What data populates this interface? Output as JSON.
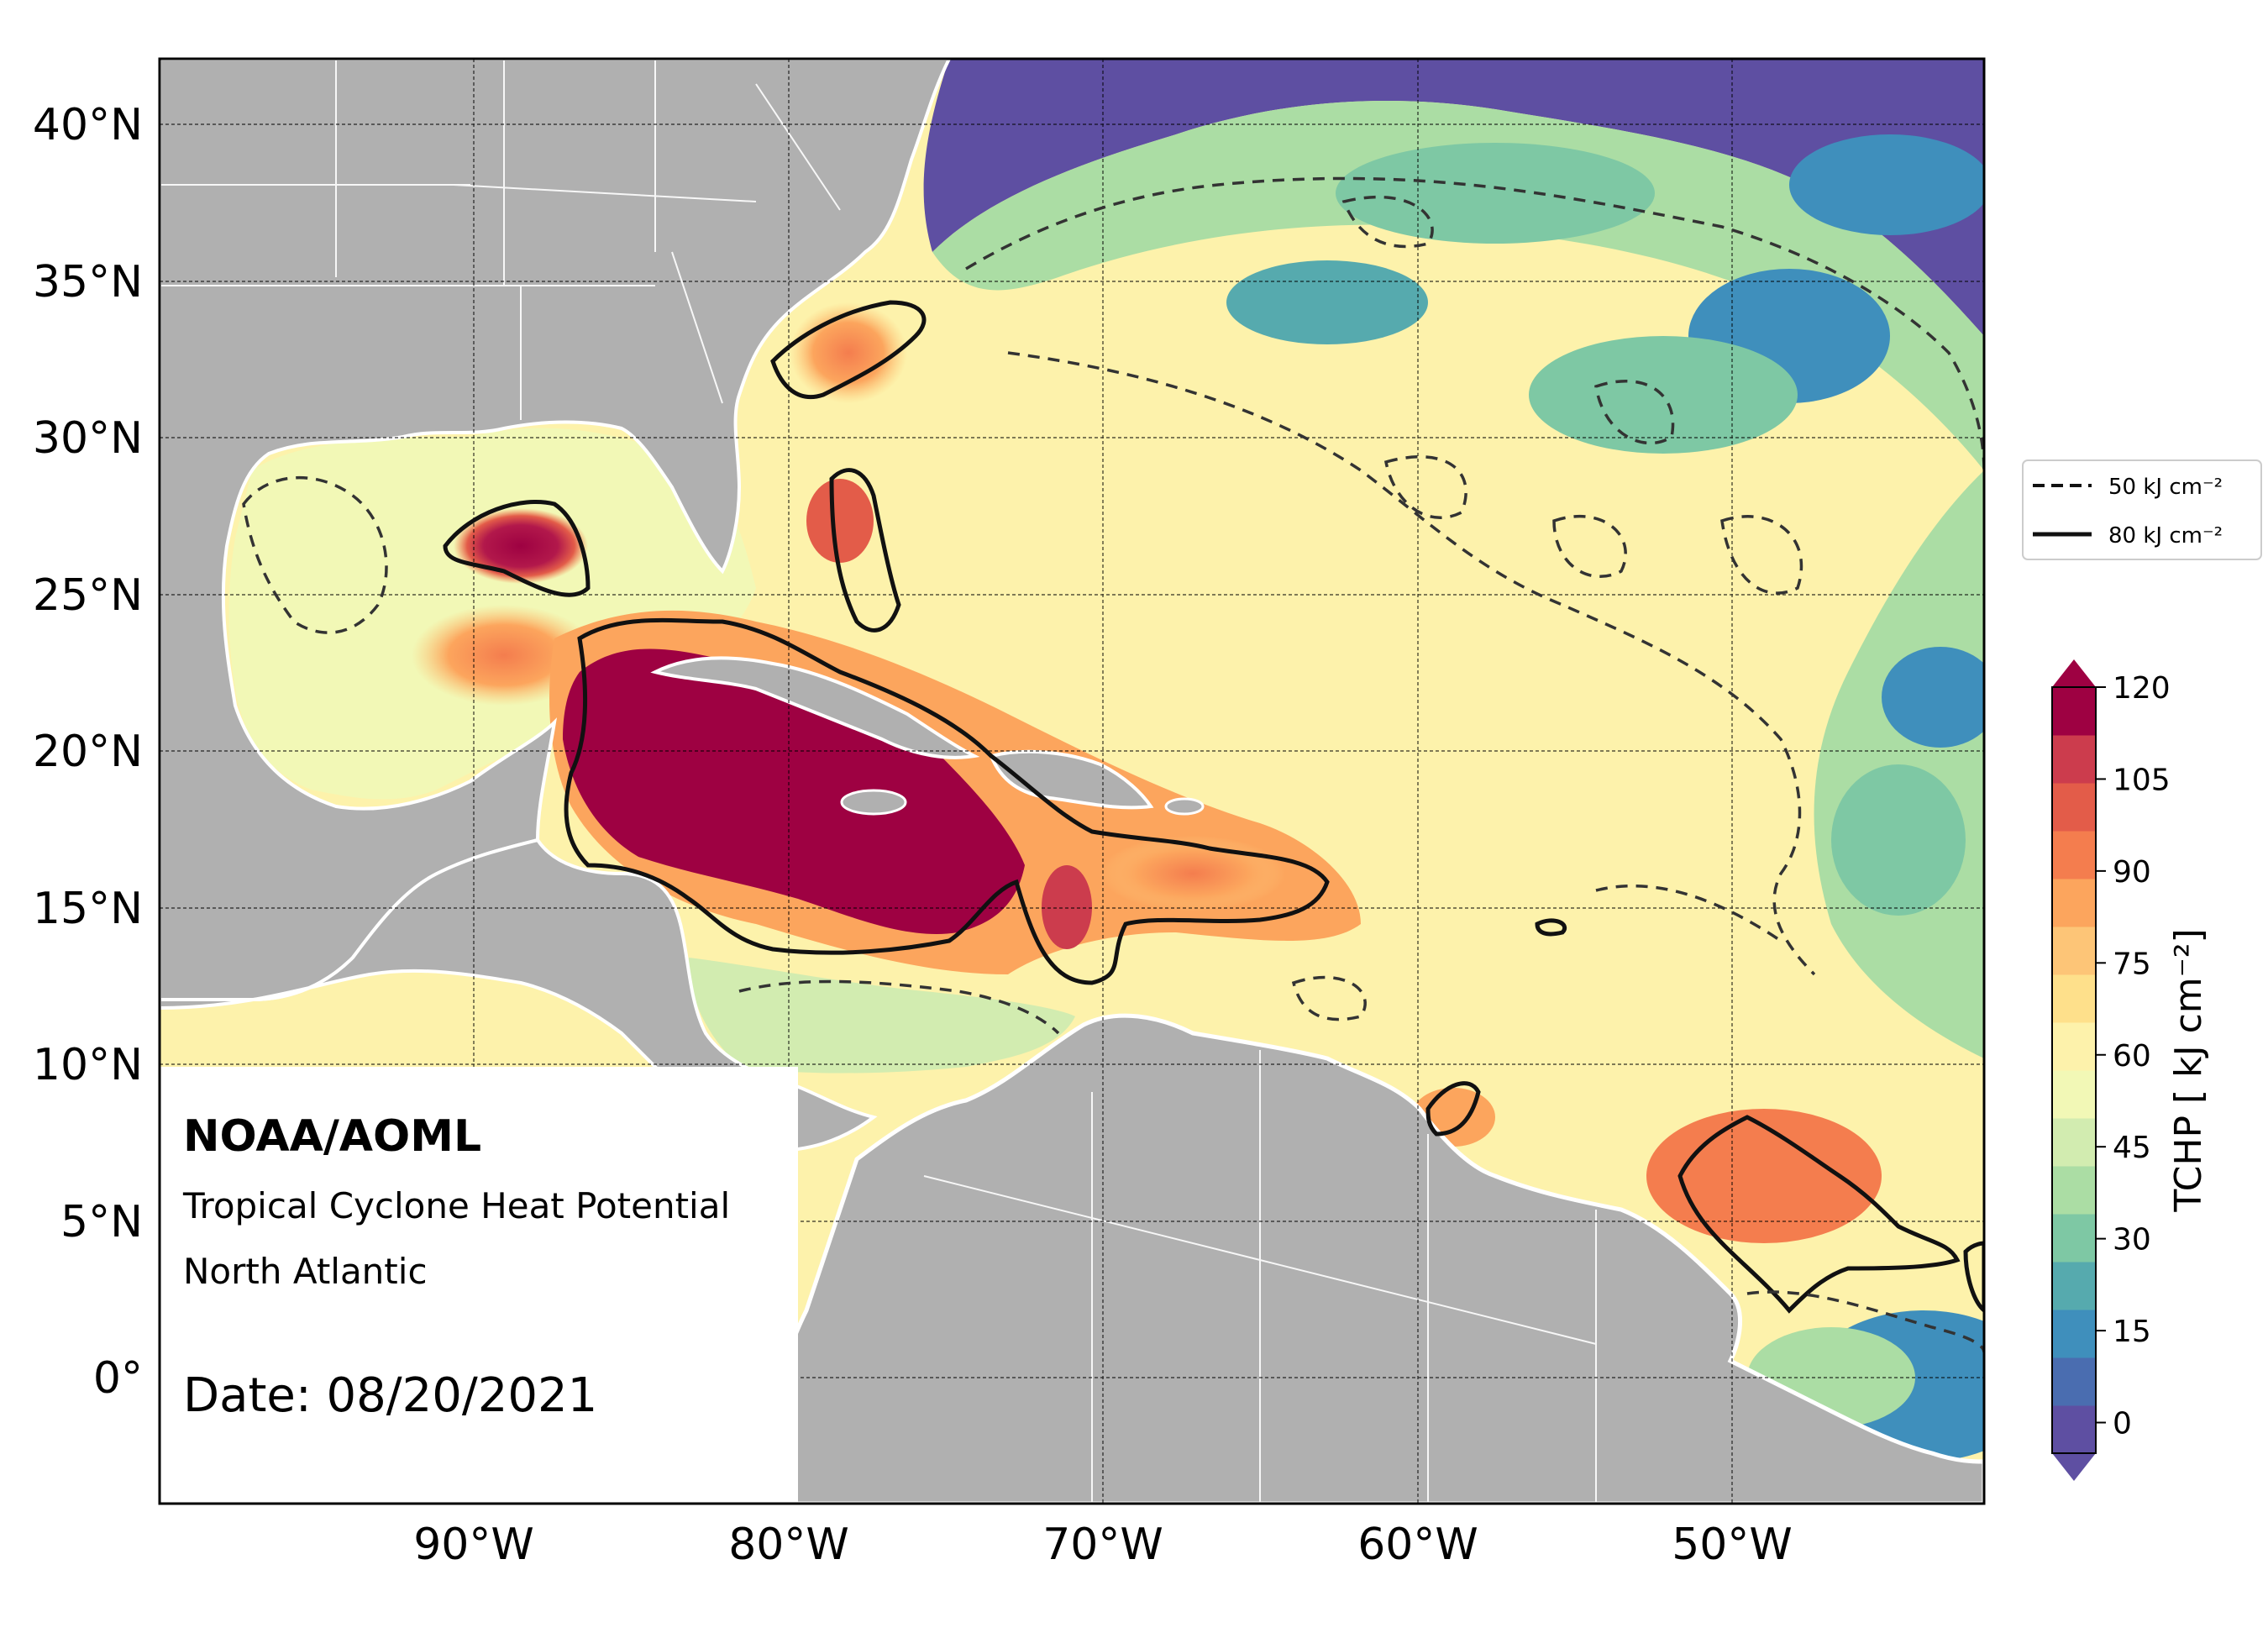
{
  "map": {
    "title": "NOAA/AOML",
    "subtitle": "Tropical Cyclone Heat Potential",
    "region": "North Atlantic",
    "date_text": "Date: 08/20/2021",
    "lon_range": [
      -100,
      -42
    ],
    "lat_range": [
      -4,
      42
    ],
    "lat_ticks": [
      {
        "value": 40,
        "label": "40°N"
      },
      {
        "value": 35,
        "label": "35°N"
      },
      {
        "value": 30,
        "label": "30°N"
      },
      {
        "value": 25,
        "label": "25°N"
      },
      {
        "value": 20,
        "label": "20°N"
      },
      {
        "value": 15,
        "label": "15°N"
      },
      {
        "value": 10,
        "label": "10°N"
      },
      {
        "value": 5,
        "label": "5°N"
      },
      {
        "value": 0,
        "label": "0°"
      }
    ],
    "lon_ticks": [
      {
        "value": -90,
        "label": "90°W"
      },
      {
        "value": -80,
        "label": "80°W"
      },
      {
        "value": -70,
        "label": "70°W"
      },
      {
        "value": -60,
        "label": "60°W"
      },
      {
        "value": -50,
        "label": "50°W"
      }
    ],
    "land_color": "#b0b0b0",
    "border_color": "#ffffff"
  },
  "legend": {
    "dashed_label": "50 kJ cm⁻²",
    "solid_label": "80 kJ cm⁻²"
  },
  "colorbar": {
    "label": "TCHP [ kJ cm⁻²]",
    "min": -5,
    "max": 120,
    "ticks": [
      "0",
      "15",
      "30",
      "45",
      "60",
      "75",
      "90",
      "105",
      "120"
    ],
    "colors": [
      "#5e4fa2",
      "#4a6db0",
      "#3f8fbc",
      "#56aaae",
      "#7ec8a4",
      "#abdda4",
      "#d2ecb0",
      "#f2f8b6",
      "#fdf2ab",
      "#fee08b",
      "#fdc577",
      "#fca55d",
      "#f47d4e",
      "#e35c49",
      "#cc3c4d",
      "#9e0142"
    ]
  }
}
